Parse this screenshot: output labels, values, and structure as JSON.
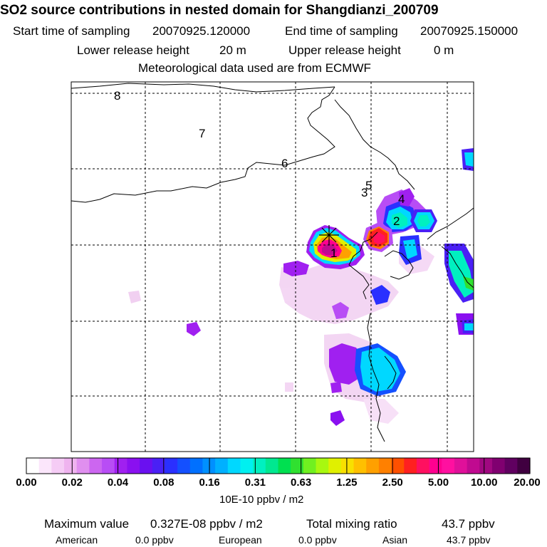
{
  "header": {
    "title": "SO2 source contributions in nested domain for Shangdianzi_200709",
    "start_label": "Start time of sampling",
    "start_value": "20070925.120000",
    "end_label": "End time of sampling",
    "end_value": "20070925.150000",
    "lower_label": "Lower release height",
    "lower_value": "20 m",
    "upper_label": "Upper release height",
    "upper_value": "0 m",
    "met_line": "Meteorological data used are from ECMWF"
  },
  "map": {
    "station_markers": [
      "1",
      "2",
      "3",
      "4",
      "5",
      "6",
      "7",
      "8"
    ],
    "background": "#ffffff",
    "grid_color": "#000000"
  },
  "colorbar": {
    "unit_label": "10E-10 ppbv / m2",
    "tick_labels": [
      "0.00",
      "0.02",
      "0.04",
      "0.08",
      "0.16",
      "0.31",
      "0.63",
      "1.25",
      "2.50",
      "5.00",
      "10.00",
      "20.00"
    ],
    "colors": [
      "#ffffff",
      "#fbe6fb",
      "#f5ccf5",
      "#efb3ef",
      "#e08fef",
      "#cc66f0",
      "#b84df5",
      "#a020f0",
      "#8a10f0",
      "#6a10f0",
      "#4a20f5",
      "#2a30ff",
      "#1450ff",
      "#0070ff",
      "#0090ff",
      "#00b0ff",
      "#00d8ff",
      "#00f0f0",
      "#00f0c0",
      "#00e890",
      "#00e050",
      "#30e030",
      "#70f020",
      "#a8f810",
      "#e0f000",
      "#f8e000",
      "#ffc000",
      "#ffa000",
      "#ff8000",
      "#ff5000",
      "#ff2020",
      "#ff1060",
      "#ff0090",
      "#ff10a0",
      "#e0109a",
      "#c00a90",
      "#a00880",
      "#800070",
      "#600060",
      "#400040"
    ]
  },
  "chart_data": {
    "type": "heatmap",
    "title": "SO2 source contributions in nested domain for Shangdianzi_200709",
    "colorbar_label": "10E-10 ppbv / m2",
    "levels": [
      0.0,
      0.02,
      0.04,
      0.08,
      0.16,
      0.31,
      0.63,
      1.25,
      2.5,
      5.0,
      10.0,
      20.0
    ],
    "max_value": "0.327E-08 ppbv / m2",
    "total_mixing_ratio": "43.7 ppbv",
    "contributions": [
      {
        "region": "American",
        "value": "0.0 ppbv"
      },
      {
        "region": "European",
        "value": "0.0 ppbv"
      },
      {
        "region": "Asian",
        "value": "43.7 ppbv"
      }
    ]
  },
  "footer": {
    "max_label": "Maximum value",
    "max_value": "0.327E-08 ppbv / m2",
    "total_label": "Total mixing ratio",
    "total_value": "43.7 ppbv",
    "american_label": "American",
    "american_value": "0.0 ppbv",
    "european_label": "European",
    "european_value": "0.0 ppbv",
    "asian_label": "Asian",
    "asian_value": "43.7 ppbv"
  }
}
